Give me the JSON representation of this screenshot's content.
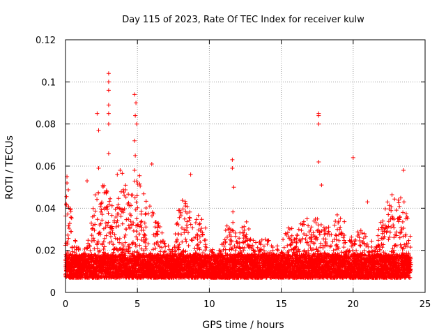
{
  "chart_data": {
    "type": "scatter",
    "title": "Day 115 of 2023, Rate Of TEC Index for receiver kulw",
    "xlabel": "GPS time / hours",
    "ylabel": "ROTI / TECUs",
    "xlim": [
      0,
      25
    ],
    "ylim": [
      0,
      0.12
    ],
    "xticks": [
      0,
      5,
      10,
      15,
      20,
      25
    ],
    "yticks": [
      0,
      0.02,
      0.04,
      0.06,
      0.08,
      0.1,
      0.12
    ],
    "xtick_labels": [
      "0",
      "5",
      "10",
      "15",
      "20",
      "25"
    ],
    "ytick_labels": [
      "0",
      "0.02",
      "0.04",
      "0.06",
      "0.08",
      "0.1",
      "0.12"
    ],
    "grid": true,
    "marker": "+",
    "color": "#ff0000",
    "series": [
      {
        "name": "ROTI",
        "sampling_interval_hours": 0.01,
        "envelope": {
          "x": [
            0,
            0.2,
            0.5,
            1.0,
            1.5,
            2.0,
            2.5,
            3.0,
            3.5,
            4.0,
            4.5,
            5.0,
            5.5,
            6.0,
            6.5,
            7.0,
            7.5,
            8.0,
            8.5,
            9.0,
            9.5,
            10.0,
            10.5,
            11.0,
            11.5,
            12.0,
            12.5,
            13.0,
            13.5,
            14.0,
            14.5,
            15.0,
            15.5,
            16.0,
            16.5,
            17.0,
            17.5,
            18.0,
            18.5,
            19.0,
            19.5,
            20.0,
            20.5,
            21.0,
            21.5,
            22.0,
            22.5,
            23.0,
            23.5,
            24.0
          ],
          "y": [
            0.042,
            0.05,
            0.033,
            0.018,
            0.022,
            0.045,
            0.052,
            0.05,
            0.04,
            0.058,
            0.042,
            0.06,
            0.045,
            0.04,
            0.032,
            0.022,
            0.024,
            0.045,
            0.042,
            0.038,
            0.036,
            0.024,
            0.016,
            0.025,
            0.045,
            0.025,
            0.035,
            0.024,
            0.025,
            0.025,
            0.023,
            0.022,
            0.035,
            0.025,
            0.035,
            0.038,
            0.035,
            0.03,
            0.035,
            0.038,
            0.032,
            0.025,
            0.03,
            0.028,
            0.022,
            0.035,
            0.045,
            0.048,
            0.045,
            0.028
          ]
        },
        "outliers": [
          {
            "x": 3.0,
            "y": 0.104
          },
          {
            "x": 3.0,
            "y": 0.1
          },
          {
            "x": 3.0,
            "y": 0.096
          },
          {
            "x": 3.0,
            "y": 0.089
          },
          {
            "x": 3.0,
            "y": 0.085
          },
          {
            "x": 3.0,
            "y": 0.08
          },
          {
            "x": 3.0,
            "y": 0.066
          },
          {
            "x": 2.2,
            "y": 0.085
          },
          {
            "x": 2.3,
            "y": 0.077
          },
          {
            "x": 2.3,
            "y": 0.059
          },
          {
            "x": 4.8,
            "y": 0.094
          },
          {
            "x": 4.9,
            "y": 0.09
          },
          {
            "x": 4.85,
            "y": 0.084
          },
          {
            "x": 4.95,
            "y": 0.08
          },
          {
            "x": 4.8,
            "y": 0.072
          },
          {
            "x": 4.85,
            "y": 0.065
          },
          {
            "x": 4.8,
            "y": 0.058
          },
          {
            "x": 6.0,
            "y": 0.061
          },
          {
            "x": 8.7,
            "y": 0.056
          },
          {
            "x": 11.6,
            "y": 0.063
          },
          {
            "x": 11.6,
            "y": 0.059
          },
          {
            "x": 11.7,
            "y": 0.05
          },
          {
            "x": 17.6,
            "y": 0.085
          },
          {
            "x": 17.6,
            "y": 0.084
          },
          {
            "x": 17.6,
            "y": 0.08
          },
          {
            "x": 17.6,
            "y": 0.062
          },
          {
            "x": 17.8,
            "y": 0.051
          },
          {
            "x": 20.0,
            "y": 0.064
          },
          {
            "x": 23.5,
            "y": 0.058
          },
          {
            "x": 0.1,
            "y": 0.055
          },
          {
            "x": 0.1,
            "y": 0.052
          },
          {
            "x": 0.05,
            "y": 0.042
          },
          {
            "x": 3.6,
            "y": 0.056
          },
          {
            "x": 3.8,
            "y": 0.058
          },
          {
            "x": 21.0,
            "y": 0.043
          },
          {
            "x": 1.5,
            "y": 0.053
          }
        ]
      }
    ]
  }
}
